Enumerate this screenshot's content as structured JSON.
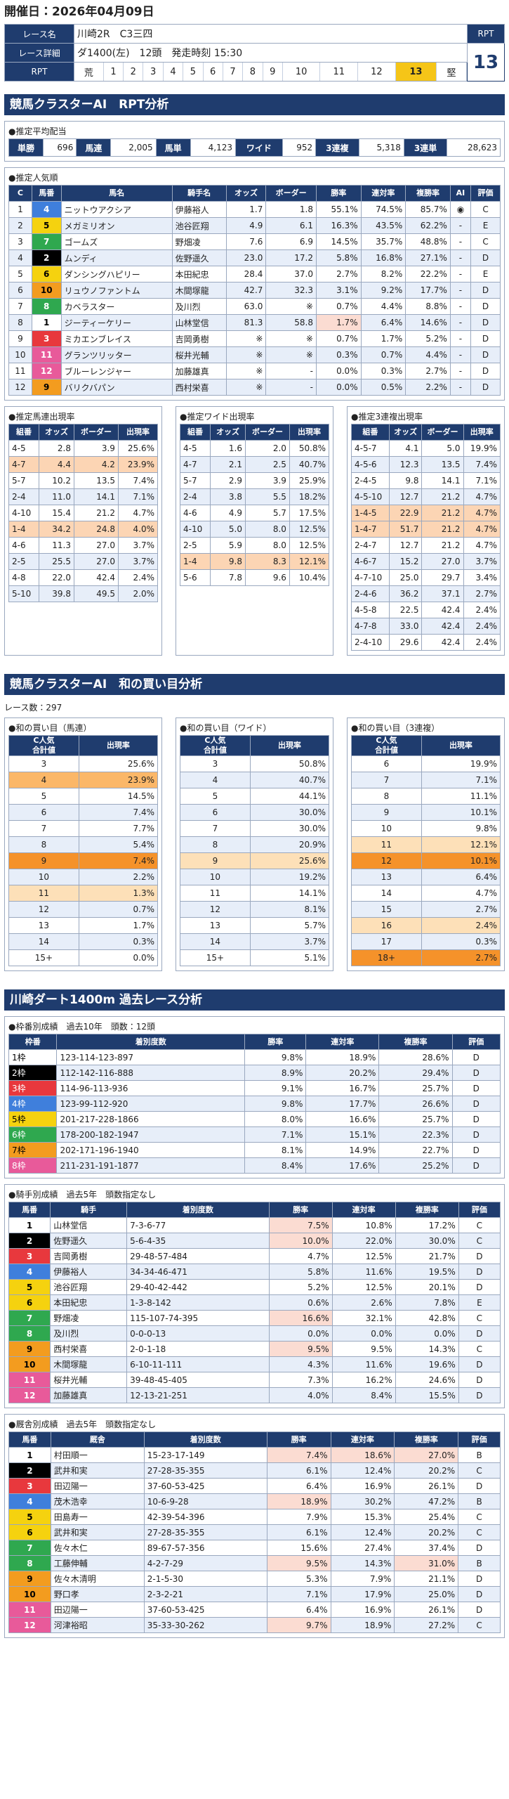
{
  "header": {
    "date": "開催日：2026年04月09日"
  },
  "race": {
    "name_label": "レース名",
    "name": "川崎2R　C3三四",
    "detail_label": "レース詳細",
    "detail": "ダ1400(左)　12頭　発走時刻 15:30",
    "rpt_label": "RPT",
    "rpt_value": 13,
    "scale_label": "RPT",
    "scale": [
      "荒",
      1,
      2,
      3,
      4,
      5,
      6,
      7,
      8,
      9,
      10,
      11,
      12,
      13,
      "堅"
    ]
  },
  "rpt": {
    "title": "競馬クラスターAI　RPT分析",
    "payout": {
      "title": "●推定平均配当",
      "items": [
        {
          "label": "単勝",
          "value": "696"
        },
        {
          "label": "馬連",
          "value": "2,005"
        },
        {
          "label": "馬単",
          "value": "4,123"
        },
        {
          "label": "ワイド",
          "value": "952"
        },
        {
          "label": "3連複",
          "value": "5,318"
        },
        {
          "label": "3連単",
          "value": "28,623"
        }
      ]
    },
    "popularity": {
      "title": "●推定人気順",
      "columns": [
        "C",
        "馬番",
        "馬名",
        "騎手名",
        "オッズ",
        "ボーダー",
        "勝率",
        "連対率",
        "複勝率",
        "AI",
        "評価"
      ],
      "color_col": 1,
      "colors": [
        "#3f7fdc",
        "#f5d20f",
        "#2fa84f",
        "#000000",
        "#f5d20f",
        "#f39c1f",
        "#2fa84f",
        "#ffffff",
        "#e8383d",
        "#e85a9a",
        "#e85a9a",
        "#f39c1f"
      ],
      "rows": [
        [
          "1",
          "4",
          "ニットウアクシア",
          "伊藤裕人",
          "1.7",
          "1.8",
          "55.1%",
          "74.5%",
          "85.7%",
          "◉",
          "C"
        ],
        [
          "2",
          "5",
          "メガミリオン",
          "池谷匠翔",
          "4.9",
          "6.1",
          "16.3%",
          "43.5%",
          "62.2%",
          "-",
          "E"
        ],
        [
          "3",
          "7",
          "ゴームズ",
          "野畑凌",
          "7.6",
          "6.9",
          "14.5%",
          "35.7%",
          "48.8%",
          "-",
          "C"
        ],
        [
          "4",
          "2",
          "ムンディ",
          "佐野遥久",
          "23.0",
          "17.2",
          "5.8%",
          "16.8%",
          "27.1%",
          "-",
          "D"
        ],
        [
          "5",
          "6",
          "ダンシングハピリー",
          "本田紀忠",
          "28.4",
          "37.0",
          "2.7%",
          "8.2%",
          "22.2%",
          "-",
          "E"
        ],
        [
          "6",
          "10",
          "リュウノファントム",
          "木間塚龍",
          "42.7",
          "32.3",
          "3.1%",
          "9.2%",
          "17.7%",
          "-",
          "D"
        ],
        [
          "7",
          "8",
          "カベラスター",
          "及川烈",
          "63.0",
          "※",
          "0.7%",
          "4.4%",
          "8.8%",
          "-",
          "D"
        ],
        [
          "8",
          "1",
          "ジーティーケリー",
          "山林堂信",
          "81.3",
          "58.8",
          "1.7%",
          "6.4%",
          "14.6%",
          "-",
          "D"
        ],
        [
          "9",
          "3",
          "ミカエンブレイス",
          "吉岡勇樹",
          "※",
          "※",
          "0.7%",
          "1.7%",
          "5.2%",
          "-",
          "D"
        ],
        [
          "10",
          "11",
          "グランツリッター",
          "桜井光輔",
          "※",
          "※",
          "0.3%",
          "0.7%",
          "4.4%",
          "-",
          "D"
        ],
        [
          "11",
          "12",
          "ブルーレンジャー",
          "加藤雄真",
          "※",
          "-",
          "0.0%",
          "0.3%",
          "2.7%",
          "-",
          "D"
        ],
        [
          "12",
          "9",
          "バリクバパン",
          "西村栄喜",
          "※",
          "-",
          "0.0%",
          "0.5%",
          "2.2%",
          "-",
          "D"
        ]
      ]
    },
    "quinella": {
      "title": "●推定馬連出現率",
      "columns": [
        "組番",
        "オッズ",
        "ボーダー",
        "出現率"
      ],
      "rows": [
        [
          "4-5",
          "2.8",
          "3.9",
          "25.6%"
        ],
        [
          "4-7",
          "4.4",
          "4.2",
          "23.9%"
        ],
        [
          "5-7",
          "10.2",
          "13.5",
          "7.4%"
        ],
        [
          "2-4",
          "11.0",
          "14.1",
          "7.1%"
        ],
        [
          "4-10",
          "15.4",
          "21.2",
          "4.7%"
        ],
        [
          "1-4",
          "34.2",
          "24.8",
          "4.0%"
        ],
        [
          "4-6",
          "11.3",
          "27.0",
          "3.7%"
        ],
        [
          "2-5",
          "25.5",
          "27.0",
          "3.7%"
        ],
        [
          "4-8",
          "22.0",
          "42.4",
          "2.4%"
        ],
        [
          "5-10",
          "39.8",
          "49.5",
          "2.0%"
        ]
      ]
    },
    "wide": {
      "title": "●推定ワイド出現率",
      "columns": [
        "組番",
        "オッズ",
        "ボーダー",
        "出現率"
      ],
      "rows": [
        [
          "4-5",
          "1.6",
          "2.0",
          "50.8%"
        ],
        [
          "4-7",
          "2.1",
          "2.5",
          "40.7%"
        ],
        [
          "5-7",
          "2.9",
          "3.9",
          "25.9%"
        ],
        [
          "2-4",
          "3.8",
          "5.5",
          "18.2%"
        ],
        [
          "4-6",
          "4.9",
          "5.7",
          "17.5%"
        ],
        [
          "4-10",
          "5.0",
          "8.0",
          "12.5%"
        ],
        [
          "2-5",
          "5.9",
          "8.0",
          "12.5%"
        ],
        [
          "1-4",
          "9.8",
          "8.3",
          "12.1%"
        ],
        [
          "5-6",
          "7.8",
          "9.6",
          "10.4%"
        ]
      ]
    },
    "trio": {
      "title": "●推定3連複出現率",
      "columns": [
        "組番",
        "オッズ",
        "ボーダー",
        "出現率"
      ],
      "rows": [
        [
          "4-5-7",
          "4.1",
          "5.0",
          "19.9%"
        ],
        [
          "4-5-6",
          "12.3",
          "13.5",
          "7.4%"
        ],
        [
          "2-4-5",
          "9.8",
          "14.1",
          "7.1%"
        ],
        [
          "4-5-10",
          "12.7",
          "21.2",
          "4.7%"
        ],
        [
          "1-4-5",
          "22.9",
          "21.2",
          "4.7%"
        ],
        [
          "1-4-7",
          "51.7",
          "21.2",
          "4.7%"
        ],
        [
          "2-4-7",
          "12.7",
          "21.2",
          "4.7%"
        ],
        [
          "4-6-7",
          "15.2",
          "27.0",
          "3.7%"
        ],
        [
          "4-7-10",
          "25.0",
          "29.7",
          "3.4%"
        ],
        [
          "2-4-6",
          "36.2",
          "37.1",
          "2.7%"
        ],
        [
          "4-5-8",
          "22.5",
          "42.4",
          "2.4%"
        ],
        [
          "4-7-8",
          "33.0",
          "42.4",
          "2.4%"
        ],
        [
          "2-4-10",
          "29.6",
          "42.4",
          "2.4%"
        ]
      ]
    }
  },
  "sum": {
    "title": "競馬クラスターAI　和の買い目分析",
    "race_count": "レース数：297",
    "quinella": {
      "title": "●和の買い目（馬連）",
      "columns": [
        "C人気\n合計値",
        "出現率"
      ],
      "rows": [
        [
          "3",
          "25.6%"
        ],
        [
          "4",
          "23.9%"
        ],
        [
          "5",
          "14.5%"
        ],
        [
          "6",
          "7.4%"
        ],
        [
          "7",
          "7.7%"
        ],
        [
          "8",
          "5.4%"
        ],
        [
          "9",
          "7.4%"
        ],
        [
          "10",
          "2.2%"
        ],
        [
          "11",
          "1.3%"
        ],
        [
          "12",
          "0.7%"
        ],
        [
          "13",
          "1.7%"
        ],
        [
          "14",
          "0.3%"
        ],
        [
          "15+",
          "0.0%"
        ]
      ]
    },
    "wide": {
      "title": "●和の買い目（ワイド）",
      "columns": [
        "C人気\n合計値",
        "出現率"
      ],
      "rows": [
        [
          "3",
          "50.8%"
        ],
        [
          "4",
          "40.7%"
        ],
        [
          "5",
          "44.1%"
        ],
        [
          "6",
          "30.0%"
        ],
        [
          "7",
          "30.0%"
        ],
        [
          "8",
          "20.9%"
        ],
        [
          "9",
          "25.6%"
        ],
        [
          "10",
          "19.2%"
        ],
        [
          "11",
          "14.1%"
        ],
        [
          "12",
          "8.1%"
        ],
        [
          "13",
          "5.7%"
        ],
        [
          "14",
          "3.7%"
        ],
        [
          "15+",
          "5.1%"
        ]
      ]
    },
    "trio": {
      "title": "●和の買い目（3連複）",
      "columns": [
        "C人気\n合計値",
        "出現率"
      ],
      "rows": [
        [
          "6",
          "19.9%"
        ],
        [
          "7",
          "7.1%"
        ],
        [
          "8",
          "11.1%"
        ],
        [
          "9",
          "10.1%"
        ],
        [
          "10",
          "9.8%"
        ],
        [
          "11",
          "12.1%"
        ],
        [
          "12",
          "10.1%"
        ],
        [
          "13",
          "6.4%"
        ],
        [
          "14",
          "4.7%"
        ],
        [
          "15",
          "2.7%"
        ],
        [
          "16",
          "2.4%"
        ],
        [
          "17",
          "0.3%"
        ],
        [
          "18+",
          "2.7%"
        ]
      ]
    }
  },
  "past": {
    "title": "川崎ダート1400m 過去レース分析",
    "frame": {
      "title": "●枠番別成績　過去10年　頭数：12頭",
      "columns": [
        "枠番",
        "着別度数",
        "勝率",
        "連対率",
        "複勝率",
        "評価"
      ],
      "color_col": 0,
      "colors": [
        "#ffffff",
        "#000000",
        "#e8383d",
        "#3f7fdc",
        "#f5d20f",
        "#2fa84f",
        "#f39c1f",
        "#e85a9a"
      ],
      "rows": [
        [
          "1枠",
          "123-114-123-897",
          "9.8%",
          "18.9%",
          "28.6%",
          "D"
        ],
        [
          "2枠",
          "112-142-116-888",
          "8.9%",
          "20.2%",
          "29.4%",
          "D"
        ],
        [
          "3枠",
          "114-96-113-936",
          "9.1%",
          "16.7%",
          "25.7%",
          "D"
        ],
        [
          "4枠",
          "123-99-112-920",
          "9.8%",
          "17.7%",
          "26.6%",
          "D"
        ],
        [
          "5枠",
          "201-217-228-1866",
          "8.0%",
          "16.6%",
          "25.7%",
          "D"
        ],
        [
          "6枠",
          "178-200-182-1947",
          "7.1%",
          "15.1%",
          "22.3%",
          "D"
        ],
        [
          "7枠",
          "202-171-196-1940",
          "8.1%",
          "14.9%",
          "22.7%",
          "D"
        ],
        [
          "8枠",
          "211-231-191-1877",
          "8.4%",
          "17.6%",
          "25.2%",
          "D"
        ]
      ]
    },
    "jockey": {
      "title": "●騎手別成績　過去5年　頭数指定なし",
      "columns": [
        "馬番",
        "騎手",
        "着別度数",
        "勝率",
        "連対率",
        "複勝率",
        "評価"
      ],
      "color_col": 0,
      "colors": [
        "#ffffff",
        "#000000",
        "#e8383d",
        "#3f7fdc",
        "#f5d20f",
        "#f5d20f",
        "#2fa84f",
        "#2fa84f",
        "#f39c1f",
        "#f39c1f",
        "#e85a9a",
        "#e85a9a"
      ],
      "rows": [
        [
          "1",
          "山林堂信",
          "7-3-6-77",
          "7.5%",
          "10.8%",
          "17.2%",
          "C"
        ],
        [
          "2",
          "佐野遥久",
          "5-6-4-35",
          "10.0%",
          "22.0%",
          "30.0%",
          "C"
        ],
        [
          "3",
          "吉岡勇樹",
          "29-48-57-484",
          "4.7%",
          "12.5%",
          "21.7%",
          "D"
        ],
        [
          "4",
          "伊藤裕人",
          "34-34-46-471",
          "5.8%",
          "11.6%",
          "19.5%",
          "D"
        ],
        [
          "5",
          "池谷匠翔",
          "29-40-42-442",
          "5.2%",
          "12.5%",
          "20.1%",
          "D"
        ],
        [
          "6",
          "本田紀忠",
          "1-3-8-142",
          "0.6%",
          "2.6%",
          "7.8%",
          "E"
        ],
        [
          "7",
          "野畑凌",
          "115-107-74-395",
          "16.6%",
          "32.1%",
          "42.8%",
          "C"
        ],
        [
          "8",
          "及川烈",
          "0-0-0-13",
          "0.0%",
          "0.0%",
          "0.0%",
          "D"
        ],
        [
          "9",
          "西村栄喜",
          "2-0-1-18",
          "9.5%",
          "9.5%",
          "14.3%",
          "C"
        ],
        [
          "10",
          "木間塚龍",
          "6-10-11-111",
          "4.3%",
          "11.6%",
          "19.6%",
          "D"
        ],
        [
          "11",
          "桜井光輔",
          "39-48-45-405",
          "7.3%",
          "16.2%",
          "24.6%",
          "D"
        ],
        [
          "12",
          "加藤雄真",
          "12-13-21-251",
          "4.0%",
          "8.4%",
          "15.5%",
          "D"
        ]
      ]
    },
    "trainer": {
      "title": "●厩舎別成績　過去5年　頭数指定なし",
      "columns": [
        "馬番",
        "厩舎",
        "着別度数",
        "勝率",
        "連対率",
        "複勝率",
        "評価"
      ],
      "color_col": 0,
      "colors": [
        "#ffffff",
        "#000000",
        "#e8383d",
        "#3f7fdc",
        "#f5d20f",
        "#f5d20f",
        "#2fa84f",
        "#2fa84f",
        "#f39c1f",
        "#f39c1f",
        "#e85a9a",
        "#e85a9a"
      ],
      "rows": [
        [
          "1",
          "村田順一",
          "15-23-17-149",
          "7.4%",
          "18.6%",
          "27.0%",
          "B"
        ],
        [
          "2",
          "武井和実",
          "27-28-35-355",
          "6.1%",
          "12.4%",
          "20.2%",
          "C"
        ],
        [
          "3",
          "田辺陽一",
          "37-60-53-425",
          "6.4%",
          "16.9%",
          "26.1%",
          "D"
        ],
        [
          "4",
          "茂木浩幸",
          "10-6-9-28",
          "18.9%",
          "30.2%",
          "47.2%",
          "B"
        ],
        [
          "5",
          "田島寿一",
          "42-39-54-396",
          "7.9%",
          "15.3%",
          "25.4%",
          "C"
        ],
        [
          "6",
          "武井和実",
          "27-28-35-355",
          "6.1%",
          "12.4%",
          "20.2%",
          "C"
        ],
        [
          "7",
          "佐々木仁",
          "89-67-57-356",
          "15.6%",
          "27.4%",
          "37.4%",
          "D"
        ],
        [
          "8",
          "工藤伸輔",
          "4-2-7-29",
          "9.5%",
          "14.3%",
          "31.0%",
          "B"
        ],
        [
          "9",
          "佐々木清明",
          "2-1-5-30",
          "5.3%",
          "7.9%",
          "21.1%",
          "D"
        ],
        [
          "10",
          "野口孝",
          "2-3-2-21",
          "7.1%",
          "17.9%",
          "25.0%",
          "D"
        ],
        [
          "11",
          "田辺陽一",
          "37-60-53-425",
          "6.4%",
          "16.9%",
          "26.1%",
          "D"
        ],
        [
          "12",
          "河津裕昭",
          "35-33-30-262",
          "9.7%",
          "18.9%",
          "27.2%",
          "C"
        ]
      ]
    }
  }
}
